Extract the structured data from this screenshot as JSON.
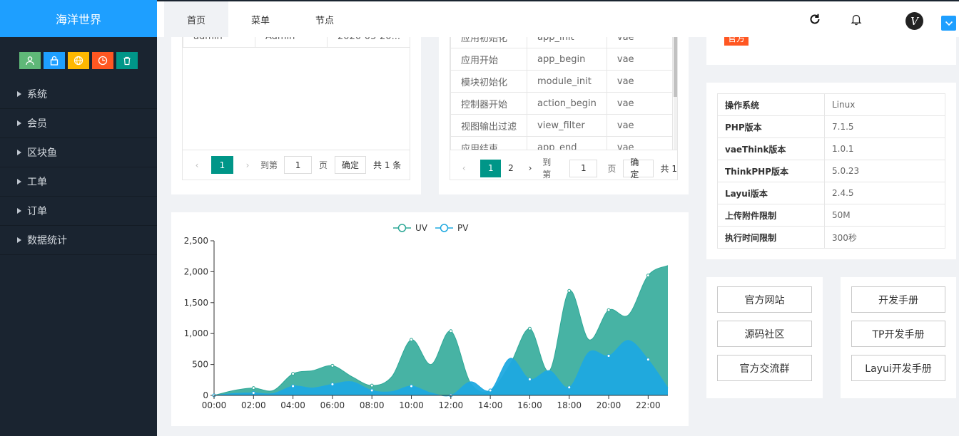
{
  "app": {
    "title": "海洋世界"
  },
  "quick_icons": [
    {
      "name": "user-icon",
      "color": "#5fb878"
    },
    {
      "name": "lock-icon",
      "color": "#1e9fff"
    },
    {
      "name": "globe-icon",
      "color": "#ffb800"
    },
    {
      "name": "clock-icon",
      "color": "#ff5722"
    },
    {
      "name": "trash-icon",
      "color": "#009688"
    }
  ],
  "sidebar": {
    "items": [
      {
        "label": "系统"
      },
      {
        "label": "会员"
      },
      {
        "label": "区块鱼"
      },
      {
        "label": "工单"
      },
      {
        "label": "订单"
      },
      {
        "label": "数据统计"
      }
    ]
  },
  "header": {
    "tabs": [
      {
        "label": "首页"
      },
      {
        "label": "菜单"
      },
      {
        "label": "节点"
      }
    ],
    "icons": [
      "refresh-icon",
      "bell-icon"
    ],
    "avatar_letter": "V"
  },
  "card_left": {
    "row": [
      "admin",
      "Admin",
      "2020-05-20..."
    ],
    "pager": {
      "current": "1",
      "goto_label": "到第",
      "goto_value": "1",
      "page_label": "页",
      "ok_label": "确定",
      "total_label": "共 1 条"
    }
  },
  "card_hooks": {
    "rows": [
      [
        "应用初始化",
        "app_init",
        "vae"
      ],
      [
        "应用开始",
        "app_begin",
        "vae"
      ],
      [
        "模块初始化",
        "module_init",
        "vae"
      ],
      [
        "控制器开始",
        "action_begin",
        "vae"
      ],
      [
        "视图输出过滤",
        "view_filter",
        "vae"
      ],
      [
        "应用结束",
        "app_end",
        "vae"
      ]
    ],
    "pager": {
      "current": "1",
      "next": "2",
      "goto_label": "到第",
      "goto_value": "1",
      "page_label": "页",
      "ok_label": "确定",
      "total_label": "共 1"
    }
  },
  "badge": {
    "label": "官方",
    "color": "#ff5722"
  },
  "sysinfo": {
    "rows": [
      {
        "key": "操作系统",
        "value": "Linux"
      },
      {
        "key": "PHP版本",
        "value": "7.1.5"
      },
      {
        "key": "vaeThink版本",
        "value": "1.0.1"
      },
      {
        "key": "ThinkPHP版本",
        "value": "5.0.23"
      },
      {
        "key": "Layui版本",
        "value": "2.4.5"
      },
      {
        "key": "上传附件限制",
        "value": "50M"
      },
      {
        "key": "执行时间限制",
        "value": "300秒"
      }
    ]
  },
  "links_left": [
    "官方网站",
    "源码社区",
    "官方交流群"
  ],
  "links_right": [
    "开发手册",
    "TP开发手册",
    "Layui开发手册"
  ],
  "chart_data": {
    "type": "area",
    "legend_position": "top-center",
    "x": [
      "00:00",
      "01:00",
      "02:00",
      "03:00",
      "04:00",
      "05:00",
      "06:00",
      "07:00",
      "08:00",
      "09:00",
      "10:00",
      "11:00",
      "12:00",
      "13:00",
      "14:00",
      "15:00",
      "16:00",
      "17:00",
      "18:00",
      "19:00",
      "20:00",
      "21:00",
      "22:00",
      "23:00"
    ],
    "xticks": [
      "00:00",
      "02:00",
      "04:00",
      "06:00",
      "08:00",
      "10:00",
      "12:00",
      "14:00",
      "16:00",
      "18:00",
      "20:00",
      "22:00"
    ],
    "yticks": [
      "0",
      "500",
      "1,000",
      "1,500",
      "2,000",
      "2,500"
    ],
    "ylim": [
      0,
      2500
    ],
    "series": [
      {
        "name": "UV",
        "color": "#2ea897",
        "values": [
          0,
          80,
          120,
          80,
          350,
          400,
          480,
          300,
          160,
          300,
          900,
          500,
          1040,
          200,
          80,
          500,
          1080,
          400,
          1690,
          900,
          1380,
          1300,
          1940,
          2100
        ]
      },
      {
        "name": "PV",
        "color": "#1fa9e0",
        "values": [
          0,
          30,
          40,
          30,
          150,
          120,
          180,
          220,
          80,
          60,
          150,
          40,
          0,
          220,
          80,
          600,
          260,
          400,
          130,
          700,
          640,
          890,
          580,
          120
        ]
      }
    ]
  }
}
